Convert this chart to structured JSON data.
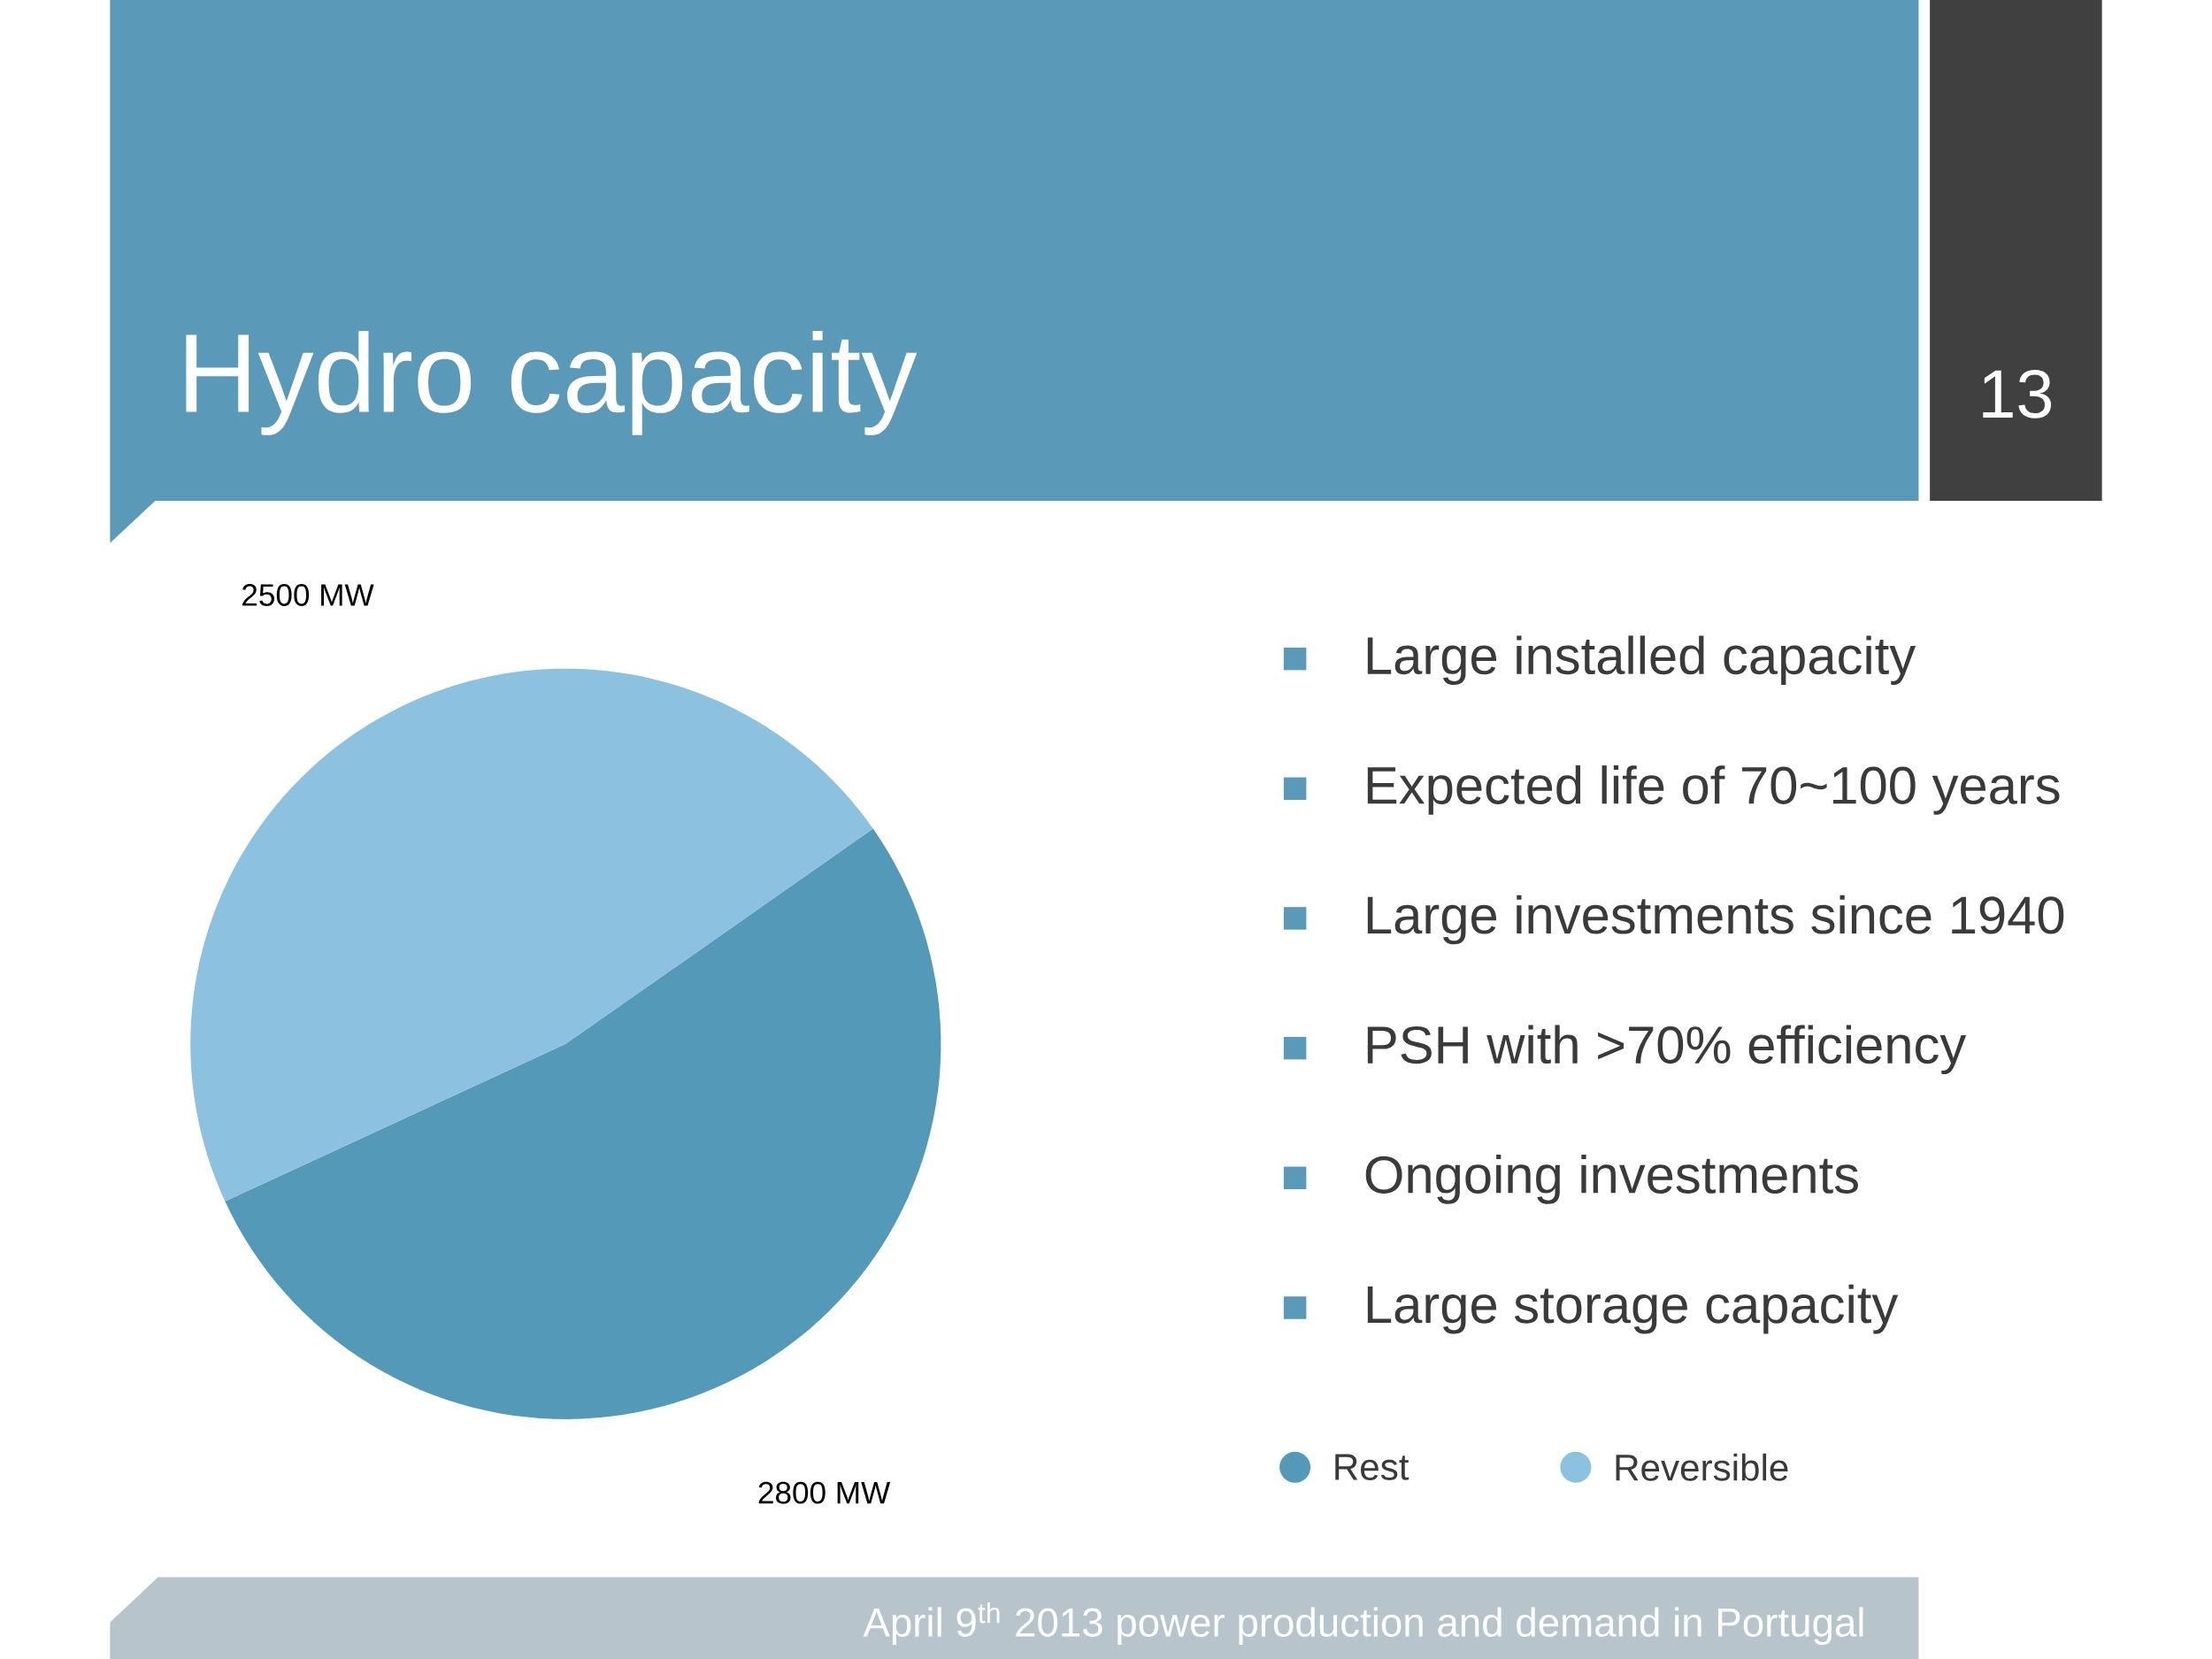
{
  "chart_data": {
    "type": "pie",
    "title": "Hydro capacity",
    "categories": [
      "Rest",
      "Reversible"
    ],
    "values": [
      2800,
      2500
    ],
    "value_labels": [
      "2800 MW",
      "2500 MW"
    ],
    "colors": [
      "#5599b9",
      "#8cc2df"
    ],
    "legend": "bottom right",
    "annotations": [
      "Large installed capacity",
      "Expected life of 70~100 years",
      "Large investments since 1940",
      "PSH with >70% efficiency",
      "Ongoing investments",
      "Large storage capacity",
      "13",
      "April 9$^{th}$ 2013 power production and demand in Portugal"
    ]
  }
}
